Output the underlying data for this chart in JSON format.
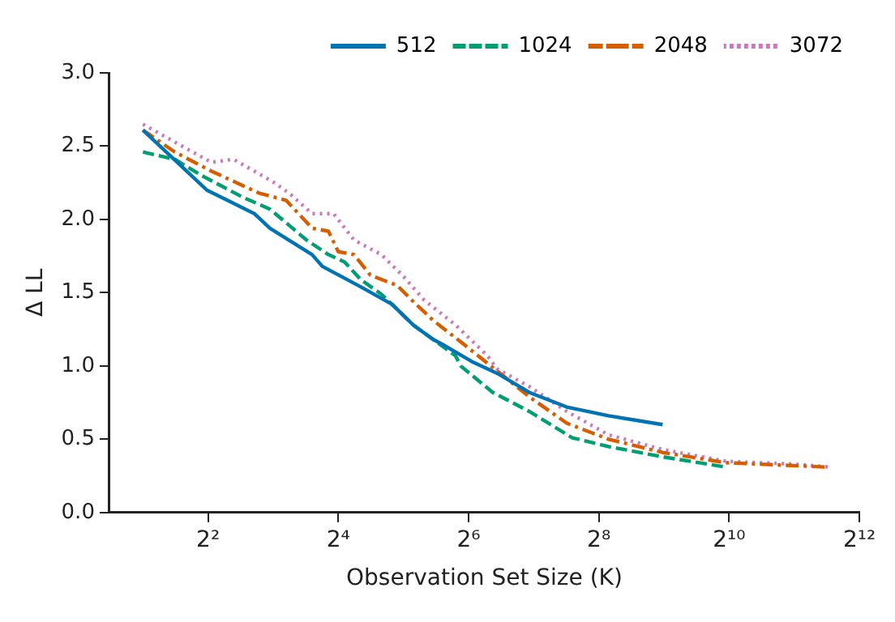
{
  "chart_data": {
    "type": "line",
    "xlabel": "Observation Set Size (K)",
    "ylabel": "Δ LL",
    "log": "x",
    "xlim": [
      1.4,
      4096
    ],
    "xticks": [
      {
        "value": 4,
        "label": "2²"
      },
      {
        "value": 16,
        "label": "2⁴"
      },
      {
        "value": 64,
        "label": "2⁶"
      },
      {
        "value": 256,
        "label": "2⁸"
      },
      {
        "value": 1024,
        "label": "2¹⁰"
      },
      {
        "value": 4096,
        "label": "2¹²"
      }
    ],
    "ylim": [
      0,
      3
    ],
    "yticks": [
      {
        "value": 0,
        "label": "0.0"
      },
      {
        "value": 0.5,
        "label": "0.5"
      },
      {
        "value": 1,
        "label": "1.0"
      },
      {
        "value": 1.5,
        "label": "1.5"
      },
      {
        "value": 2,
        "label": "2.0"
      },
      {
        "value": 2.5,
        "label": "2.5"
      },
      {
        "value": 3,
        "label": "3.0"
      }
    ],
    "grid": false,
    "legend": "top right",
    "marker": "none",
    "series": [
      {
        "name": "512",
        "color": "#0173b2",
        "line_style": "solid",
        "x": [
          2,
          3.95,
          6.54,
          7.73,
          12.1,
          13.5,
          20.3,
          28.4,
          35.5,
          44,
          49.5,
          66.3,
          86.8,
          122,
          182,
          284,
          505
        ],
        "values": [
          2.61,
          2.2,
          2.04,
          1.94,
          1.76,
          1.68,
          1.54,
          1.42,
          1.28,
          1.18,
          1.14,
          1.03,
          0.95,
          0.82,
          0.72,
          0.66,
          0.6
        ]
      },
      {
        "name": "1024",
        "color": "#029e73",
        "line_style": "dashed",
        "x": [
          2,
          2.81,
          3.73,
          5.82,
          7.73,
          11.4,
          14.4,
          17.1,
          20.3,
          25.3,
          35.5,
          55.7,
          58.9,
          82.7,
          122,
          193,
          284,
          505,
          989
        ],
        "values": [
          2.46,
          2.41,
          2.3,
          2.15,
          2.07,
          1.86,
          1.76,
          1.71,
          1.59,
          1.49,
          1.28,
          1.07,
          1.0,
          0.82,
          0.69,
          0.51,
          0.45,
          0.38,
          0.31
        ]
      },
      {
        "name": "2048",
        "color": "#d55e00",
        "line_style": "dashdot",
        "x": [
          2,
          2.81,
          4.14,
          6.87,
          9.19,
          12.1,
          14.4,
          16,
          18.9,
          22.5,
          29.9,
          35.5,
          44,
          61.8,
          69.5,
          93.1,
          122,
          182,
          284,
          505,
          989,
          2048,
          2896
        ],
        "values": [
          2.61,
          2.46,
          2.33,
          2.18,
          2.13,
          1.94,
          1.92,
          1.78,
          1.76,
          1.62,
          1.55,
          1.44,
          1.31,
          1.14,
          1.08,
          0.93,
          0.79,
          0.61,
          0.5,
          0.41,
          0.34,
          0.32,
          0.31
        ]
      },
      {
        "name": "3072",
        "color": "#cc78bc",
        "line_style": "dotted",
        "x": [
          2,
          2.95,
          4.14,
          5.24,
          6.54,
          8.11,
          9.65,
          12.1,
          15.2,
          18.9,
          25.3,
          31.6,
          39.9,
          55.7,
          78.2,
          86.8,
          122,
          182,
          284,
          505,
          989,
          2048,
          2977
        ],
        "values": [
          2.65,
          2.51,
          2.39,
          2.41,
          2.33,
          2.25,
          2.17,
          2.04,
          2.04,
          1.86,
          1.76,
          1.62,
          1.45,
          1.28,
          1.07,
          0.98,
          0.86,
          0.69,
          0.53,
          0.43,
          0.35,
          0.33,
          0.31
        ]
      }
    ]
  }
}
